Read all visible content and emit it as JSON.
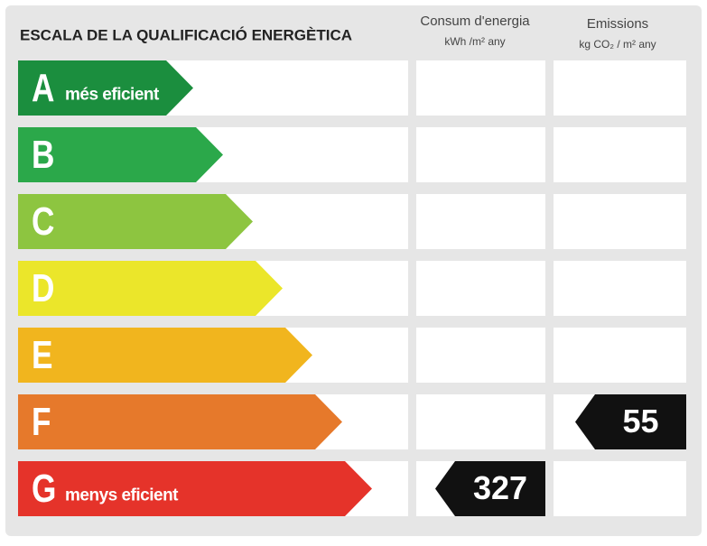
{
  "title": "ESCALA DE LA QUALIFICACIÓ ENERGÈTICA",
  "columns": [
    {
      "label": "Consum d'energia",
      "unit": "kWh /m² any"
    },
    {
      "label": "Emissions",
      "unit": "kg CO₂ / m² any"
    }
  ],
  "classes": [
    {
      "letter": "A",
      "note": "més eficient",
      "color": "#1b8e3e"
    },
    {
      "letter": "B",
      "color": "#2ba84a"
    },
    {
      "letter": "C",
      "color": "#8dc540"
    },
    {
      "letter": "D",
      "color": "#ebe62a"
    },
    {
      "letter": "E",
      "color": "#f1b51e"
    },
    {
      "letter": "F",
      "color": "#e6792b"
    },
    {
      "letter": "G",
      "note": "menys eficient",
      "color": "#e5332a"
    }
  ],
  "ratings": [
    {
      "column": 0,
      "class": "G",
      "value": "327"
    },
    {
      "column": 1,
      "class": "F",
      "value": "55"
    }
  ]
}
